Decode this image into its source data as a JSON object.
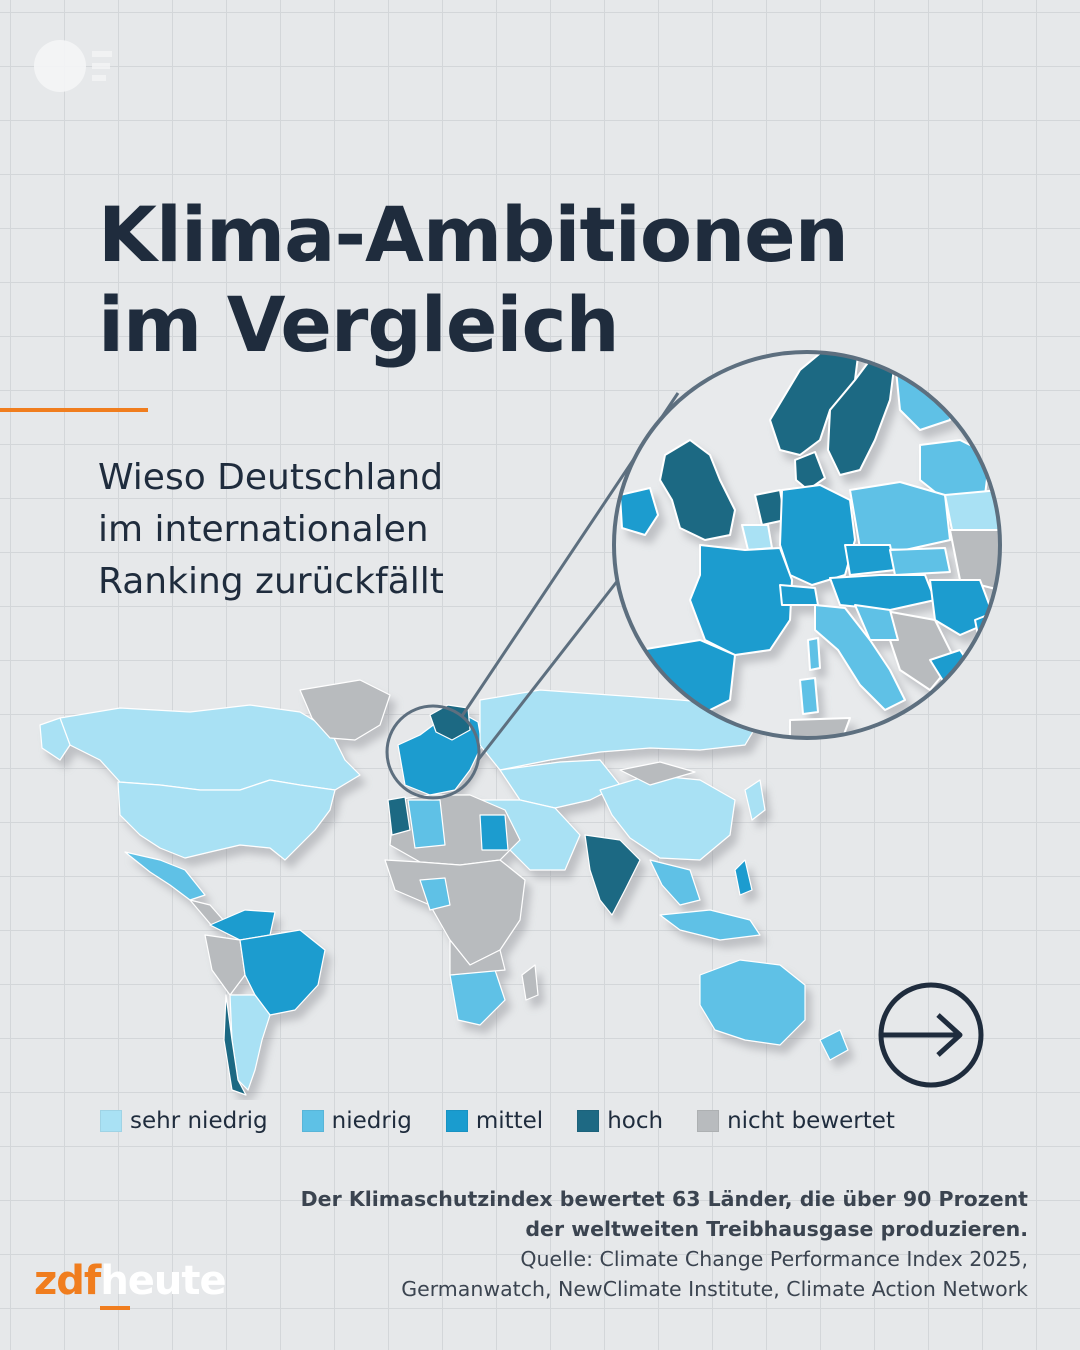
{
  "title": {
    "line1": "Klima-Ambitionen",
    "line2": "im Vergleich"
  },
  "subtitle": {
    "line1": "Wieso Deutschland",
    "line2": "im internationalen",
    "line3": "Ranking zurückfällt"
  },
  "legend": [
    {
      "label": "sehr niedrig",
      "color": "#a9e1f4"
    },
    {
      "label": "niedrig",
      "color": "#5ec1e6"
    },
    {
      "label": "mittel",
      "color": "#1a9ccf"
    },
    {
      "label": "hoch",
      "color": "#1e6983"
    },
    {
      "label": "nicht bewertet",
      "color": "#b8bbbe"
    }
  ],
  "footer": {
    "note_line1": "Der Klimaschutzindex bewertet 63 Länder, die über 90 Prozent",
    "note_line2": "der weltweiten Treibhausgase produzieren.",
    "source_line1": "Quelle: Climate Change Performance Index 2025,",
    "source_line2": "Germanwatch, NewClimate Institute, Climate Action Network"
  },
  "brand": {
    "part1": "zdf",
    "part2": "heute"
  },
  "icons": {
    "next": "arrow-right-circle-icon",
    "watermark": "zdf-logo-icon"
  }
}
